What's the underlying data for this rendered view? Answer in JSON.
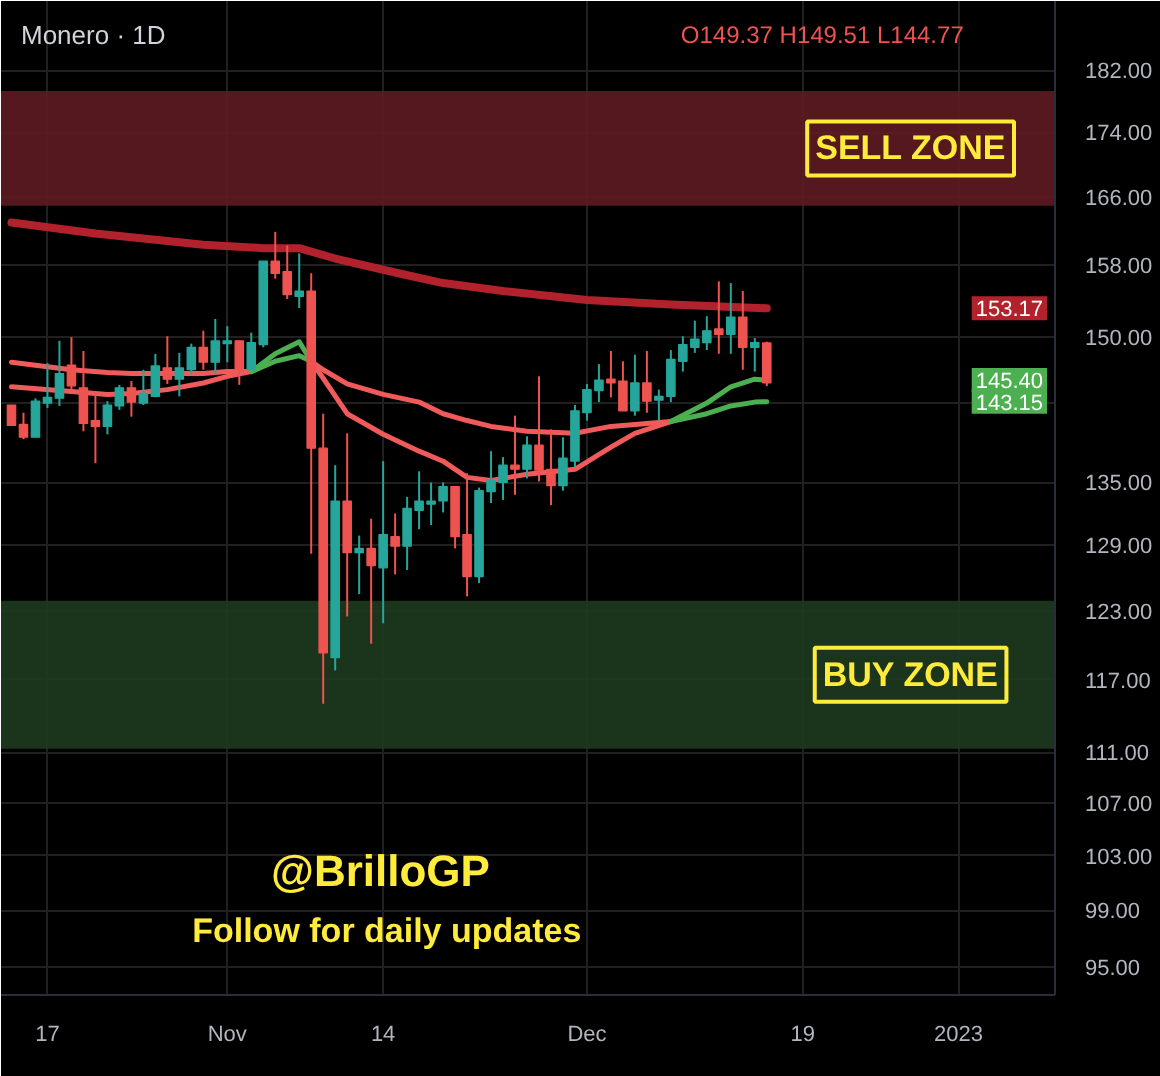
{
  "chart_data": {
    "type": "candlestick",
    "title": "Monero · 1D",
    "annotations": [
      "O149.37 H149.51 L144.77",
      "@BrilloGP",
      "Follow for daily updates",
      {
        "text": "153.17",
        "y": 153.17
      },
      {
        "text": "145.40",
        "y": 145.4
      },
      {
        "text": "143.15",
        "y": 143.15
      }
    ],
    "x": [
      "2022-10-14",
      "2022-10-15",
      "2022-10-16",
      "2022-10-17",
      "2022-10-18",
      "2022-10-19",
      "2022-10-20",
      "2022-10-21",
      "2022-10-22",
      "2022-10-23",
      "2022-10-24",
      "2022-10-25",
      "2022-10-26",
      "2022-10-27",
      "2022-10-28",
      "2022-10-29",
      "2022-10-30",
      "2022-10-31",
      "2022-11-01",
      "2022-11-02",
      "2022-11-03",
      "2022-11-04",
      "2022-11-05",
      "2022-11-06",
      "2022-11-07",
      "2022-11-08",
      "2022-11-09",
      "2022-11-10",
      "2022-11-11",
      "2022-11-12",
      "2022-11-13",
      "2022-11-14",
      "2022-11-15",
      "2022-11-16",
      "2022-11-17",
      "2022-11-18",
      "2022-11-19",
      "2022-11-20",
      "2022-11-21",
      "2022-11-22",
      "2022-11-23",
      "2022-11-24",
      "2022-11-25",
      "2022-11-26",
      "2022-11-27",
      "2022-11-28",
      "2022-11-29",
      "2022-11-30",
      "2022-12-01",
      "2022-12-02",
      "2022-12-03",
      "2022-12-04",
      "2022-12-05",
      "2022-12-06",
      "2022-12-07",
      "2022-12-08",
      "2022-12-09",
      "2022-12-10",
      "2022-12-11",
      "2022-12-12",
      "2022-12-13",
      "2022-12-14",
      "2022-12-15",
      "2022-12-16"
    ],
    "ohlc": [
      [
        142.8,
        142.8,
        140.7,
        140.7
      ],
      [
        140.8,
        142.0,
        139.3,
        139.5
      ],
      [
        139.5,
        143.5,
        139.5,
        143.2
      ],
      [
        143.0,
        147.2,
        142.5,
        143.6
      ],
      [
        143.5,
        149.6,
        142.7,
        146.1
      ],
      [
        147.0,
        150.0,
        144.4,
        144.8
      ],
      [
        144.6,
        148.5,
        140.1,
        140.9
      ],
      [
        141.2,
        144.1,
        136.9,
        140.6
      ],
      [
        140.6,
        143.2,
        139.8,
        142.8
      ],
      [
        142.7,
        144.9,
        142.3,
        144.6
      ],
      [
        144.6,
        145.3,
        141.6,
        143.1
      ],
      [
        143.0,
        146.5,
        142.8,
        144.0
      ],
      [
        143.7,
        148.2,
        143.6,
        146.9
      ],
      [
        146.7,
        150.1,
        145.0,
        145.5
      ],
      [
        145.5,
        148.3,
        143.7,
        146.7
      ],
      [
        146.5,
        149.3,
        146.0,
        148.9
      ],
      [
        148.9,
        150.7,
        146.5,
        147.3
      ],
      [
        147.3,
        152.0,
        146.0,
        149.6
      ],
      [
        149.3,
        151.2,
        147.3,
        149.6
      ],
      [
        149.6,
        149.6,
        144.9,
        146.5
      ],
      [
        146.5,
        150.5,
        146.5,
        149.4
      ],
      [
        149.2,
        158.5,
        148.9,
        158.5
      ],
      [
        158.5,
        161.9,
        156.5,
        157.1
      ],
      [
        157.3,
        160.3,
        154.2,
        154.7
      ],
      [
        154.5,
        159.4,
        153.2,
        155.1
      ],
      [
        155.1,
        157.1,
        128.2,
        138.4
      ],
      [
        138.4,
        141.9,
        115.0,
        119.3
      ],
      [
        118.9,
        136.7,
        117.8,
        133.2
      ],
      [
        133.2,
        139.9,
        122.5,
        128.3
      ],
      [
        128.3,
        129.9,
        124.5,
        128.7
      ],
      [
        128.7,
        131.5,
        120.1,
        127.1
      ],
      [
        126.9,
        137.1,
        121.9,
        130.0
      ],
      [
        129.8,
        132.0,
        126.3,
        128.9
      ],
      [
        128.9,
        133.6,
        126.7,
        132.5
      ],
      [
        132.3,
        136.1,
        130.5,
        133.2
      ],
      [
        132.9,
        135.0,
        130.9,
        133.2
      ],
      [
        133.2,
        135.0,
        132.1,
        134.6
      ],
      [
        134.6,
        134.6,
        128.7,
        129.8
      ],
      [
        130.0,
        135.9,
        124.3,
        126.1
      ],
      [
        126.1,
        134.5,
        125.5,
        134.2
      ],
      [
        134.1,
        138.1,
        133.0,
        135.2
      ],
      [
        135.0,
        137.5,
        133.3,
        136.7
      ],
      [
        136.7,
        141.7,
        133.8,
        136.3
      ],
      [
        136.3,
        139.6,
        135.4,
        138.7
      ],
      [
        138.7,
        145.8,
        135.1,
        136.2
      ],
      [
        136.3,
        140.3,
        132.8,
        134.7
      ],
      [
        134.7,
        139.5,
        134.2,
        137.4
      ],
      [
        137.1,
        142.8,
        136.5,
        142.2
      ],
      [
        142.0,
        145.0,
        141.2,
        144.4
      ],
      [
        144.3,
        147.1,
        143.1,
        145.4
      ],
      [
        145.5,
        148.5,
        143.6,
        145.1
      ],
      [
        145.3,
        147.4,
        142.2,
        142.2
      ],
      [
        142.2,
        148.1,
        141.7,
        145.1
      ],
      [
        145.1,
        148.5,
        142.0,
        143.2
      ],
      [
        143.3,
        144.4,
        141.2,
        143.7
      ],
      [
        143.7,
        148.6,
        143.1,
        147.6
      ],
      [
        147.4,
        150.1,
        146.3,
        149.2
      ],
      [
        148.9,
        151.8,
        148.3,
        149.8
      ],
      [
        149.4,
        152.3,
        148.6,
        150.7
      ],
      [
        150.9,
        156.2,
        148.2,
        150.3
      ],
      [
        150.3,
        156.0,
        148.2,
        152.2
      ],
      [
        152.2,
        155.1,
        146.5,
        148.9
      ],
      [
        148.9,
        149.9,
        146.3,
        149.4
      ],
      [
        149.37,
        149.51,
        144.77,
        145.1
      ]
    ],
    "colors": [
      "#ef5350",
      "#ef5350",
      "#26a69a",
      "#26a69a",
      "#26a69a",
      "#ef5350",
      "#ef5350",
      "#ef5350",
      "#26a69a",
      "#26a69a",
      "#ef5350",
      "#26a69a",
      "#26a69a",
      "#ef5350",
      "#26a69a",
      "#26a69a",
      "#ef5350",
      "#26a69a",
      "#26a69a",
      "#ef5350",
      "#26a69a",
      "#26a69a",
      "#ef5350",
      "#ef5350",
      "#26a69a",
      "#ef5350",
      "#ef5350",
      "#26a69a",
      "#ef5350",
      "#26a69a",
      "#ef5350",
      "#26a69a",
      "#ef5350",
      "#26a69a",
      "#26a69a",
      "#26a69a",
      "#26a69a",
      "#ef5350",
      "#ef5350",
      "#26a69a",
      "#26a69a",
      "#26a69a",
      "#ef5350",
      "#26a69a",
      "#ef5350",
      "#ef5350",
      "#26a69a",
      "#26a69a",
      "#26a69a",
      "#26a69a",
      "#ef5350",
      "#ef5350",
      "#26a69a",
      "#ef5350",
      "#26a69a",
      "#26a69a",
      "#26a69a",
      "#26a69a",
      "#26a69a",
      "#ef5350",
      "#26a69a",
      "#ef5350",
      "#26a69a",
      "#ef5350"
    ],
    "series": [
      {
        "type": "line",
        "color": "#b2222c",
        "x": [
          "2022-10-14",
          "2022-10-21",
          "2022-10-30",
          "2022-11-04",
          "2022-11-07",
          "2022-11-10",
          "2022-11-15",
          "2022-11-19",
          "2022-11-24",
          "2022-12-01",
          "2022-12-08",
          "2022-12-16"
        ],
        "values": [
          163.0,
          161.7,
          160.4,
          160.0,
          160.0,
          158.8,
          157.2,
          156.0,
          155.1,
          154.1,
          153.6,
          153.17
        ]
      },
      {
        "type": "line",
        "color": "#f05a5a",
        "x": [
          "2022-10-14",
          "2022-10-19",
          "2022-10-22",
          "2022-10-24",
          "2022-10-27",
          "2022-10-30",
          "2022-11-01",
          "2022-11-03",
          "2022-11-05",
          "2022-11-07",
          "2022-11-08",
          "2022-11-09",
          "2022-11-11",
          "2022-11-14",
          "2022-11-17",
          "2022-11-19",
          "2022-11-21",
          "2022-11-23",
          "2022-11-26",
          "2022-11-30",
          "2022-12-03",
          "2022-12-05",
          "2022-12-08"
        ],
        "values": [
          147.3,
          146.5,
          146.2,
          146.1,
          146.1,
          146.1,
          146.3,
          146.3,
          null,
          null,
          147.4,
          146.5,
          145.0,
          143.9,
          143.1,
          141.9,
          141.2,
          140.6,
          140.1,
          139.9,
          140.6,
          140.8,
          141.1
        ]
      },
      {
        "type": "line",
        "color": "#4caf50",
        "x": [
          "2022-11-03",
          "2022-11-05",
          "2022-11-07",
          "2022-11-08",
          "2022-11-09",
          "2022-11-11",
          "2022-11-14",
          "2022-11-17",
          "2022-11-19",
          "2022-11-21",
          "2022-11-23",
          "2022-11-26",
          "2022-11-30",
          "2022-12-03",
          "2022-12-05",
          "2022-12-08",
          "2022-12-11",
          "2022-12-13",
          "2022-12-15",
          "2022-12-16"
        ],
        "values": [
          146.3,
          147.4,
          148.0,
          147.4,
          null,
          null,
          null,
          null,
          null,
          null,
          null,
          null,
          null,
          null,
          null,
          141.1,
          141.9,
          142.7,
          143.1,
          143.15
        ]
      },
      {
        "type": "line",
        "color": "#f05a5a",
        "x": [
          "2022-10-14",
          "2022-10-19",
          "2022-10-22",
          "2022-10-24",
          "2022-10-27",
          "2022-10-30",
          "2022-11-01",
          "2022-11-03",
          "2022-11-05",
          "2022-11-07",
          "2022-11-08",
          "2022-11-09",
          "2022-11-11",
          "2022-11-14",
          "2022-11-17",
          "2022-11-19",
          "2022-11-21",
          "2022-11-23",
          "2022-11-26",
          "2022-11-30",
          "2022-12-03",
          "2022-12-05",
          "2022-12-08"
        ],
        "values": [
          144.7,
          144.2,
          143.9,
          144.0,
          144.4,
          145.1,
          145.8,
          146.3,
          null,
          null,
          147.4,
          145.6,
          141.9,
          139.8,
          138.1,
          137.1,
          135.5,
          135.2,
          135.8,
          136.3,
          138.5,
          139.9,
          141.1
        ]
      },
      {
        "type": "line",
        "color": "#4caf50",
        "x": [
          "2022-11-03",
          "2022-11-05",
          "2022-11-07",
          "2022-11-08",
          "2022-11-09",
          "2022-11-11",
          "2022-11-14",
          "2022-11-17",
          "2022-11-19",
          "2022-11-21",
          "2022-11-23",
          "2022-11-26",
          "2022-11-30",
          "2022-12-03",
          "2022-12-05",
          "2022-12-08",
          "2022-12-11",
          "2022-12-13",
          "2022-12-15",
          "2022-12-16"
        ],
        "values": [
          146.3,
          148.2,
          149.5,
          147.4,
          null,
          null,
          null,
          null,
          null,
          null,
          null,
          null,
          null,
          null,
          null,
          141.1,
          143.0,
          144.7,
          145.5,
          145.4
        ]
      }
    ],
    "bands": [
      {
        "axis": "y",
        "from": 165.0,
        "to": 179.3,
        "label": "SELL ZONE",
        "color": "#5e1b21"
      },
      {
        "axis": "y",
        "from": 111.3,
        "to": 123.9,
        "label": "BUY ZONE",
        "color": "#1e3b20"
      }
    ],
    "xlim": [
      "2022-10-13T03:00",
      "2023-01-09T01:00"
    ],
    "xticks": [
      {
        "value": "2022-10-17",
        "label": "17"
      },
      {
        "value": "2022-11-01",
        "label": "Nov"
      },
      {
        "value": "2022-11-14",
        "label": "14"
      },
      {
        "value": "2022-12-01",
        "label": "Dec"
      },
      {
        "value": "2022-12-19",
        "label": "19"
      },
      {
        "value": "2023-01-01",
        "label": "2023"
      }
    ],
    "ylim": [
      93.1,
      191.4
    ],
    "yticks": [
      {
        "value": 95,
        "label": "95.00"
      },
      {
        "value": 99,
        "label": "99.00"
      },
      {
        "value": 103,
        "label": "103.00"
      },
      {
        "value": 107,
        "label": "107.00"
      },
      {
        "value": 111,
        "label": "111.00"
      },
      {
        "value": 117,
        "label": "117.00"
      },
      {
        "value": 123,
        "label": "123.00"
      },
      {
        "value": 129,
        "label": "129.00"
      },
      {
        "value": 135,
        "label": "135.00"
      },
      {
        "value": 143,
        "label": null
      },
      {
        "value": 150,
        "label": "150.00"
      },
      {
        "value": 158,
        "label": "158.00"
      },
      {
        "value": 166,
        "label": "166.00"
      },
      {
        "value": 174,
        "label": "174.00"
      },
      {
        "value": 182,
        "label": "182.00"
      }
    ],
    "log": "y",
    "grid": true
  }
}
